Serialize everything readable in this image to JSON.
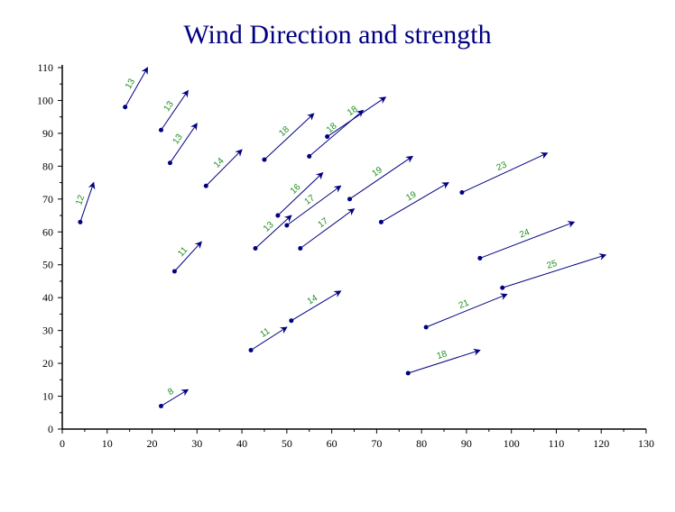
{
  "chart_data": {
    "type": "vector-field",
    "title": "Wind Direction and strength",
    "xlabel": "",
    "ylabel": "",
    "xlim": [
      0,
      130
    ],
    "ylim": [
      0,
      110
    ],
    "x_ticks": [
      0,
      10,
      20,
      30,
      40,
      50,
      60,
      70,
      80,
      90,
      100,
      110,
      120,
      130
    ],
    "y_ticks": [
      0,
      10,
      20,
      30,
      40,
      50,
      60,
      70,
      80,
      90,
      100,
      110
    ],
    "grid": false,
    "colors": {
      "title": "#000080",
      "arrow": "#000080",
      "label": "#1f8f1f",
      "axis": "#000000"
    },
    "vectors": [
      {
        "x": 4,
        "y": 63,
        "x2": 7,
        "y2": 75,
        "label": "12"
      },
      {
        "x": 14,
        "y": 98,
        "x2": 19,
        "y2": 110,
        "label": "13"
      },
      {
        "x": 22,
        "y": 91,
        "x2": 28,
        "y2": 103,
        "label": "13"
      },
      {
        "x": 24,
        "y": 81,
        "x2": 30,
        "y2": 93,
        "label": "13"
      },
      {
        "x": 22,
        "y": 7,
        "x2": 28,
        "y2": 12,
        "label": "8"
      },
      {
        "x": 25,
        "y": 48,
        "x2": 31,
        "y2": 57,
        "label": "11"
      },
      {
        "x": 32,
        "y": 74,
        "x2": 40,
        "y2": 85,
        "label": "14"
      },
      {
        "x": 42,
        "y": 24,
        "x2": 50,
        "y2": 31,
        "label": "11"
      },
      {
        "x": 43,
        "y": 55,
        "x2": 51,
        "y2": 65,
        "label": "13"
      },
      {
        "x": 45,
        "y": 82,
        "x2": 56,
        "y2": 96,
        "label": "18"
      },
      {
        "x": 48,
        "y": 65,
        "x2": 58,
        "y2": 78,
        "label": "16"
      },
      {
        "x": 50,
        "y": 62,
        "x2": 62,
        "y2": 74,
        "label": "17"
      },
      {
        "x": 51,
        "y": 33,
        "x2": 62,
        "y2": 42,
        "label": "14"
      },
      {
        "x": 53,
        "y": 55,
        "x2": 65,
        "y2": 67,
        "label": "17"
      },
      {
        "x": 55,
        "y": 83,
        "x2": 67,
        "y2": 97,
        "label": "18"
      },
      {
        "x": 59,
        "y": 89,
        "x2": 72,
        "y2": 101,
        "label": "18"
      },
      {
        "x": 64,
        "y": 70,
        "x2": 78,
        "y2": 83,
        "label": "19"
      },
      {
        "x": 71,
        "y": 63,
        "x2": 86,
        "y2": 75,
        "label": "19"
      },
      {
        "x": 77,
        "y": 17,
        "x2": 93,
        "y2": 24,
        "label": "18"
      },
      {
        "x": 81,
        "y": 31,
        "x2": 99,
        "y2": 41,
        "label": "21"
      },
      {
        "x": 89,
        "y": 72,
        "x2": 108,
        "y2": 84,
        "label": "23"
      },
      {
        "x": 93,
        "y": 52,
        "x2": 114,
        "y2": 63,
        "label": "24"
      },
      {
        "x": 98,
        "y": 43,
        "x2": 121,
        "y2": 53,
        "label": "25"
      }
    ]
  }
}
